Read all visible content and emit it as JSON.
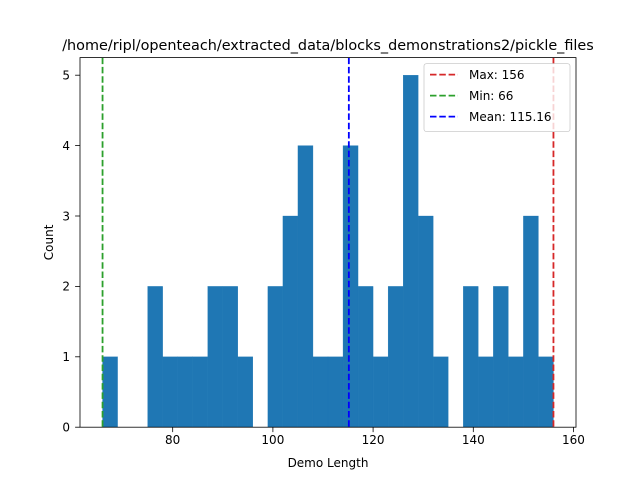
{
  "chart_data": {
    "type": "bar",
    "title": "/home/ripl/openteach/extracted_data/blocks_demonstrations2/pickle_files",
    "xlabel": "Demo Length",
    "ylabel": "Count",
    "xlim": [
      61.5,
      160.5
    ],
    "ylim": [
      0,
      5.25
    ],
    "xticks": [
      80,
      100,
      120,
      140,
      160
    ],
    "yticks": [
      0,
      1,
      2,
      3,
      4,
      5
    ],
    "bar_color": "#1f77b4",
    "bins": [
      {
        "x0": 66,
        "x1": 69,
        "value": 1
      },
      {
        "x0": 69,
        "x1": 72,
        "value": 0
      },
      {
        "x0": 72,
        "x1": 75,
        "value": 0
      },
      {
        "x0": 75,
        "x1": 78,
        "value": 2
      },
      {
        "x0": 78,
        "x1": 81,
        "value": 1
      },
      {
        "x0": 81,
        "x1": 84,
        "value": 1
      },
      {
        "x0": 84,
        "x1": 87,
        "value": 1
      },
      {
        "x0": 87,
        "x1": 90,
        "value": 2
      },
      {
        "x0": 90,
        "x1": 93,
        "value": 2
      },
      {
        "x0": 93,
        "x1": 96,
        "value": 1
      },
      {
        "x0": 96,
        "x1": 99,
        "value": 0
      },
      {
        "x0": 99,
        "x1": 102,
        "value": 2
      },
      {
        "x0": 102,
        "x1": 105,
        "value": 3
      },
      {
        "x0": 105,
        "x1": 108,
        "value": 4
      },
      {
        "x0": 108,
        "x1": 111,
        "value": 1
      },
      {
        "x0": 111,
        "x1": 114,
        "value": 1
      },
      {
        "x0": 114,
        "x1": 117,
        "value": 4
      },
      {
        "x0": 117,
        "x1": 120,
        "value": 2
      },
      {
        "x0": 120,
        "x1": 123,
        "value": 1
      },
      {
        "x0": 123,
        "x1": 126,
        "value": 2
      },
      {
        "x0": 126,
        "x1": 129,
        "value": 5
      },
      {
        "x0": 129,
        "x1": 132,
        "value": 3
      },
      {
        "x0": 132,
        "x1": 135,
        "value": 1
      },
      {
        "x0": 135,
        "x1": 138,
        "value": 0
      },
      {
        "x0": 138,
        "x1": 141,
        "value": 2
      },
      {
        "x0": 141,
        "x1": 144,
        "value": 1
      },
      {
        "x0": 144,
        "x1": 147,
        "value": 2
      },
      {
        "x0": 147,
        "x1": 150,
        "value": 1
      },
      {
        "x0": 150,
        "x1": 153,
        "value": 3
      },
      {
        "x0": 153,
        "x1": 156,
        "value": 1
      }
    ],
    "vlines": [
      {
        "label": "Max: 156",
        "x": 156,
        "color": "#d62728"
      },
      {
        "label": "Min: 66",
        "x": 66,
        "color": "#2ca02c"
      },
      {
        "label": "Mean: 115.16",
        "x": 115.16,
        "color": "#0000ff"
      }
    ],
    "grid": false,
    "legend_position": "top-right"
  }
}
